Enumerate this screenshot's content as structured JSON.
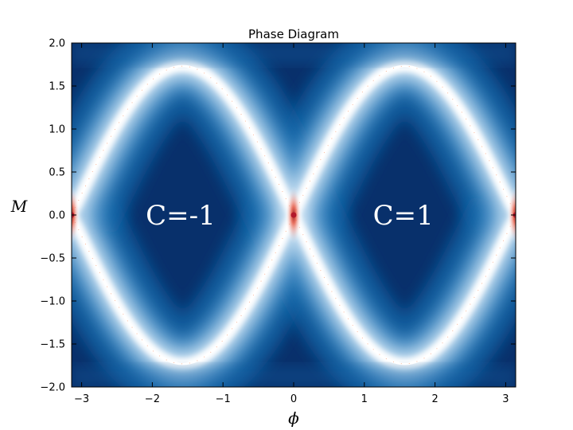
{
  "chart_data": {
    "type": "heatmap",
    "title": "Phase Diagram",
    "xlabel": "ϕ",
    "ylabel": "M",
    "xlim": [
      -3.14159,
      3.14159
    ],
    "ylim": [
      -2.0,
      2.0
    ],
    "xticks": [
      -3,
      -2,
      -1,
      0,
      1,
      2,
      3
    ],
    "xtick_labels": [
      "−3",
      "−2",
      "−1",
      "0",
      "1",
      "2",
      "3"
    ],
    "yticks": [
      2.0,
      1.5,
      1.0,
      0.5,
      0.0,
      -0.5,
      -1.0,
      -1.5,
      -2.0
    ],
    "ytick_labels": [
      "2.0",
      "1.5",
      "1.0",
      "0.5",
      "0.0",
      "−0.5",
      "−1.0",
      "−1.5",
      "−2.0"
    ],
    "phase_boundary": "M = ±√3·sin(ϕ)",
    "boundary_peak_M": 1.73,
    "regions": [
      {
        "label": "C=-1",
        "phi": -1.6,
        "M": 0.0
      },
      {
        "label": "C=1",
        "phi": 1.55,
        "M": 0.0
      }
    ],
    "colormap": [
      "#0b2e63",
      "#1565a8",
      "#4f94c9",
      "#c8e0f2",
      "#ffffff",
      "#f4a582",
      "#b2182b"
    ],
    "grid": false
  }
}
